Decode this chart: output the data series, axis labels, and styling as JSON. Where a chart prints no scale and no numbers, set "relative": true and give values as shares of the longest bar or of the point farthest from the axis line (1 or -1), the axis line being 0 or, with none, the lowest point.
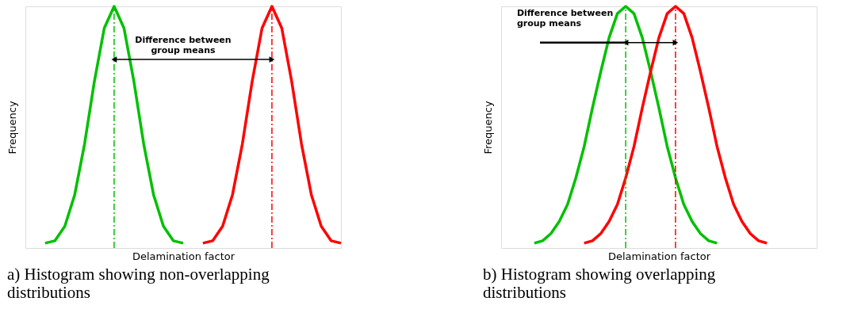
{
  "chart_data": [
    {
      "type": "line",
      "relative": true,
      "title": "a)  Histogram showing non-overlapping\ndistributions",
      "xlabel": "Delamination factor",
      "ylabel": "Frequency",
      "grid": false,
      "legend": false,
      "marker": "none",
      "line_style": "solid",
      "categories": [
        null,
        null,
        null,
        null,
        null,
        null,
        null,
        null,
        null,
        null,
        null,
        null,
        null,
        null,
        null,
        null,
        null,
        null,
        null,
        null,
        null,
        null,
        null,
        null,
        null,
        null,
        null,
        null,
        null,
        null,
        null,
        null,
        null
      ],
      "series": [
        {
          "color": "#00c000",
          "values": [
            null,
            null,
            0.02,
            0.03,
            0.09,
            0.22,
            0.43,
            0.69,
            0.91,
            1,
            0.91,
            0.69,
            0.43,
            0.22,
            0.09,
            0.03,
            0.02,
            null,
            null,
            null,
            null,
            null,
            null,
            null,
            null,
            null,
            null,
            null,
            null,
            null,
            null,
            null,
            null
          ]
        },
        {
          "color": "#ff0000",
          "values": [
            null,
            null,
            null,
            null,
            null,
            null,
            null,
            null,
            null,
            null,
            null,
            null,
            null,
            null,
            null,
            null,
            null,
            null,
            0.02,
            0.03,
            0.09,
            0.22,
            0.43,
            0.69,
            0.91,
            1,
            0.91,
            0.69,
            0.43,
            0.22,
            0.09,
            0.03,
            0.02
          ]
        }
      ],
      "annotations": [
        "Difference between\ngroup means"
      ]
    },
    {
      "type": "line",
      "relative": true,
      "title": "b)  Histogram showing overlapping\ndistributions",
      "xlabel": "Delamination factor",
      "ylabel": "Frequency",
      "grid": false,
      "legend": false,
      "marker": "none",
      "line_style": "solid",
      "categories": [
        null,
        null,
        null,
        null,
        null,
        null,
        null,
        null,
        null,
        null,
        null,
        null,
        null,
        null,
        null,
        null,
        null,
        null,
        null,
        null,
        null,
        null,
        null,
        null,
        null,
        null,
        null,
        null,
        null,
        null,
        null,
        null,
        null,
        null,
        null,
        null,
        null,
        null,
        null
      ],
      "series": [
        {
          "color": "#00c000",
          "values": [
            null,
            null,
            null,
            null,
            0.02,
            0.03,
            0.06,
            0.11,
            0.18,
            0.29,
            0.42,
            0.58,
            0.73,
            0.87,
            0.97,
            1,
            0.97,
            0.87,
            0.73,
            0.58,
            0.42,
            0.29,
            0.18,
            0.11,
            0.06,
            0.03,
            0.02,
            null,
            null,
            null,
            null,
            null,
            null,
            null,
            null,
            null,
            null,
            null,
            null
          ]
        },
        {
          "color": "#ff0000",
          "values": [
            null,
            null,
            null,
            null,
            null,
            null,
            null,
            null,
            null,
            null,
            0.02,
            0.03,
            0.06,
            0.11,
            0.18,
            0.29,
            0.42,
            0.58,
            0.73,
            0.87,
            0.97,
            1,
            0.97,
            0.87,
            0.73,
            0.58,
            0.42,
            0.29,
            0.18,
            0.11,
            0.06,
            0.03,
            0.02,
            null,
            null,
            null,
            null,
            null,
            null
          ]
        }
      ],
      "annotations": [
        "Difference between\ngroup means"
      ]
    }
  ]
}
